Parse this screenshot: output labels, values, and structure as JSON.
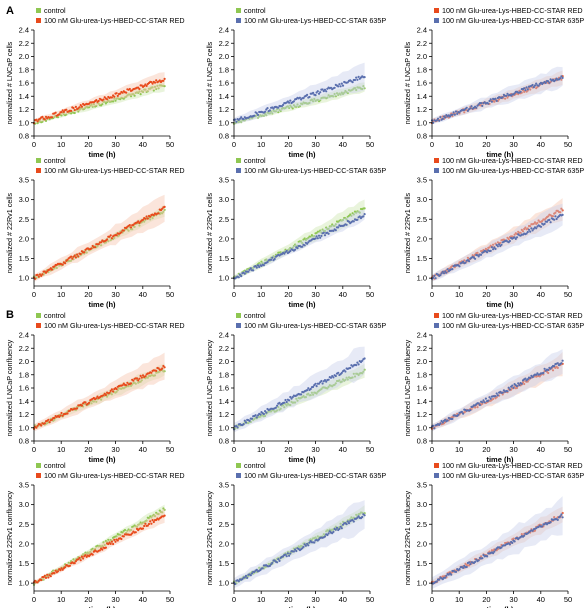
{
  "panels": [
    "A",
    "B"
  ],
  "colors": {
    "control": "#8fc752",
    "red": "#e84a1c",
    "p635": "#5a6fae",
    "control_band": "#cfe7b2",
    "red_band": "#f7c5b0",
    "p635_band": "#c9d1ec"
  },
  "chart_data": [
    {
      "type": "scatter",
      "panel": "A",
      "xlabel": "time (h)",
      "ylabel": "normalized # LNCaP cells",
      "xlim": [
        0,
        50
      ],
      "ylim": [
        0.8,
        2.4
      ],
      "xticks": [
        0,
        10,
        20,
        30,
        40,
        50
      ],
      "yticks": [
        0.8,
        1.0,
        1.2,
        1.4,
        1.6,
        1.8,
        2.0,
        2.2,
        2.4
      ],
      "series": [
        {
          "name": "control",
          "color_key": "control",
          "x": [
            0,
            48
          ],
          "y": [
            1.0,
            1.56
          ],
          "band": 0.06
        },
        {
          "name": "100 nM Glu-urea-Lys-HBED-CC-STAR RED",
          "color_key": "red",
          "x": [
            0,
            48
          ],
          "y": [
            1.02,
            1.66
          ],
          "band": 0.08
        }
      ]
    },
    {
      "type": "scatter",
      "panel": "A",
      "xlabel": "time (h)",
      "ylabel": "normalized # LNCaP cells",
      "xlim": [
        0,
        50
      ],
      "ylim": [
        0.8,
        2.4
      ],
      "xticks": [
        0,
        10,
        20,
        30,
        40,
        50
      ],
      "yticks": [
        0.8,
        1.0,
        1.2,
        1.4,
        1.6,
        1.8,
        2.0,
        2.2,
        2.4
      ],
      "series": [
        {
          "name": "control",
          "color_key": "control",
          "x": [
            0,
            48
          ],
          "y": [
            1.0,
            1.54
          ],
          "band": 0.06
        },
        {
          "name": "100 nM Glu-urea-Lys-HBED-CC-STAR 635P",
          "color_key": "p635",
          "x": [
            0,
            48
          ],
          "y": [
            1.02,
            1.7
          ],
          "band": 0.14
        }
      ]
    },
    {
      "type": "scatter",
      "panel": "A",
      "xlabel": "time (h)",
      "ylabel": "normalized # LNCaP cells",
      "xlim": [
        0,
        50
      ],
      "ylim": [
        0.8,
        2.4
      ],
      "xticks": [
        0,
        10,
        20,
        30,
        40,
        50
      ],
      "yticks": [
        0.8,
        1.0,
        1.2,
        1.4,
        1.6,
        1.8,
        2.0,
        2.2,
        2.4
      ],
      "series": [
        {
          "name": "100 nM Glu-urea-Lys-HBED-CC-STAR RED",
          "color_key": "red",
          "x": [
            0,
            48
          ],
          "y": [
            1.02,
            1.68
          ],
          "band": 0.08
        },
        {
          "name": "100 nM Glu-urea-Lys-HBED-CC-STAR 635P",
          "color_key": "p635",
          "x": [
            0,
            48
          ],
          "y": [
            1.02,
            1.7
          ],
          "band": 0.12
        }
      ]
    },
    {
      "type": "scatter",
      "panel": "A",
      "xlabel": "time (h)",
      "ylabel": "normalized # 22Rv1 cells",
      "xlim": [
        0,
        50
      ],
      "ylim": [
        0.8,
        3.5
      ],
      "xticks": [
        0,
        10,
        20,
        30,
        40,
        50
      ],
      "yticks": [
        1.0,
        1.5,
        2.0,
        2.5,
        3.0,
        3.5
      ],
      "series": [
        {
          "name": "control",
          "color_key": "control",
          "x": [
            0,
            48
          ],
          "y": [
            1.0,
            2.72
          ],
          "band": 0.1
        },
        {
          "name": "100 nM Glu-urea-Lys-HBED-CC-STAR RED",
          "color_key": "red",
          "x": [
            0,
            48
          ],
          "y": [
            1.0,
            2.78
          ],
          "band": 0.25
        }
      ]
    },
    {
      "type": "scatter",
      "panel": "A",
      "xlabel": "time (h)",
      "ylabel": "normalized # 22Rv1 cells",
      "xlim": [
        0,
        50
      ],
      "ylim": [
        0.8,
        3.5
      ],
      "xticks": [
        0,
        10,
        20,
        30,
        40,
        50
      ],
      "yticks": [
        1.0,
        1.5,
        2.0,
        2.5,
        3.0,
        3.5
      ],
      "series": [
        {
          "name": "control",
          "color_key": "control",
          "x": [
            0,
            48
          ],
          "y": [
            1.0,
            2.78
          ],
          "band": 0.18
        },
        {
          "name": "100 nM Glu-urea-Lys-HBED-CC-STAR 635P",
          "color_key": "p635",
          "x": [
            0,
            48
          ],
          "y": [
            1.0,
            2.62
          ],
          "band": 0.12
        }
      ]
    },
    {
      "type": "scatter",
      "panel": "A",
      "xlabel": "time (h)",
      "ylabel": "normalized # 22Rv1 cells",
      "xlim": [
        0,
        50
      ],
      "ylim": [
        0.8,
        3.5
      ],
      "xticks": [
        0,
        10,
        20,
        30,
        40,
        50
      ],
      "yticks": [
        1.0,
        1.5,
        2.0,
        2.5,
        3.0,
        3.5
      ],
      "series": [
        {
          "name": "100 nM Glu-urea-Lys-HBED-CC-STAR RED",
          "color_key": "red",
          "x": [
            0,
            48
          ],
          "y": [
            1.0,
            2.75
          ],
          "band": 0.2
        },
        {
          "name": "100 nM Glu-urea-Lys-HBED-CC-STAR 635P",
          "color_key": "p635",
          "x": [
            0,
            48
          ],
          "y": [
            1.0,
            2.62
          ],
          "band": 0.22
        }
      ]
    },
    {
      "type": "scatter",
      "panel": "B",
      "xlabel": "time (h)",
      "ylabel": "normalized LNCaP confluency",
      "xlim": [
        0,
        50
      ],
      "ylim": [
        0.8,
        2.4
      ],
      "xticks": [
        0,
        10,
        20,
        30,
        40,
        50
      ],
      "yticks": [
        0.8,
        1.0,
        1.2,
        1.4,
        1.6,
        1.8,
        2.0,
        2.2,
        2.4
      ],
      "series": [
        {
          "name": "control",
          "color_key": "control",
          "x": [
            0,
            48
          ],
          "y": [
            1.0,
            1.88
          ],
          "band": 0.08
        },
        {
          "name": "100 nM Glu-urea-Lys-HBED-CC-STAR RED",
          "color_key": "red",
          "x": [
            0,
            48
          ],
          "y": [
            1.0,
            1.93
          ],
          "band": 0.14
        }
      ]
    },
    {
      "type": "scatter",
      "panel": "B",
      "xlabel": "time (h)",
      "ylabel": "normalized LNCaP confluency",
      "xlim": [
        0,
        50
      ],
      "ylim": [
        0.8,
        2.4
      ],
      "xticks": [
        0,
        10,
        20,
        30,
        40,
        50
      ],
      "yticks": [
        0.8,
        1.0,
        1.2,
        1.4,
        1.6,
        1.8,
        2.0,
        2.2,
        2.4
      ],
      "series": [
        {
          "name": "control",
          "color_key": "control",
          "x": [
            0,
            48
          ],
          "y": [
            1.0,
            1.86
          ],
          "band": 0.08
        },
        {
          "name": "100 nM Glu-urea-Lys-HBED-CC-STAR 635P",
          "color_key": "p635",
          "x": [
            0,
            48
          ],
          "y": [
            1.0,
            2.02
          ],
          "band": 0.18
        }
      ]
    },
    {
      "type": "scatter",
      "panel": "B",
      "xlabel": "time (h)",
      "ylabel": "normalized LNCaP confluency",
      "xlim": [
        0,
        50
      ],
      "ylim": [
        0.8,
        2.4
      ],
      "xticks": [
        0,
        10,
        20,
        30,
        40,
        50
      ],
      "yticks": [
        0.8,
        1.0,
        1.2,
        1.4,
        1.6,
        1.8,
        2.0,
        2.2,
        2.4
      ],
      "series": [
        {
          "name": "100 nM Glu-urea-Lys-HBED-CC-STAR RED",
          "color_key": "red",
          "x": [
            0,
            48
          ],
          "y": [
            1.0,
            1.96
          ],
          "band": 0.12
        },
        {
          "name": "100 nM Glu-urea-Lys-HBED-CC-STAR 635P",
          "color_key": "p635",
          "x": [
            0,
            48
          ],
          "y": [
            1.0,
            2.0
          ],
          "band": 0.14
        }
      ]
    },
    {
      "type": "scatter",
      "panel": "B",
      "xlabel": "time (h)",
      "ylabel": "normalized 22Rv1 confluency",
      "xlim": [
        0,
        50
      ],
      "ylim": [
        0.8,
        3.5
      ],
      "xticks": [
        0,
        10,
        20,
        30,
        40,
        50
      ],
      "yticks": [
        1.0,
        1.5,
        2.0,
        2.5,
        3.0,
        3.5
      ],
      "series": [
        {
          "name": "control",
          "color_key": "control",
          "x": [
            0,
            48
          ],
          "y": [
            1.0,
            2.88
          ],
          "band": 0.1
        },
        {
          "name": "100 nM Glu-urea-Lys-HBED-CC-STAR RED",
          "color_key": "red",
          "x": [
            0,
            48
          ],
          "y": [
            1.0,
            2.72
          ],
          "band": 0.12
        }
      ]
    },
    {
      "type": "scatter",
      "panel": "B",
      "xlabel": "time (h)",
      "ylabel": "normalized 22Rv1 confluency",
      "xlim": [
        0,
        50
      ],
      "ylim": [
        0.8,
        3.5
      ],
      "xticks": [
        0,
        10,
        20,
        30,
        40,
        50
      ],
      "yticks": [
        1.0,
        1.5,
        2.0,
        2.5,
        3.0,
        3.5
      ],
      "series": [
        {
          "name": "control",
          "color_key": "control",
          "x": [
            0,
            48
          ],
          "y": [
            1.0,
            2.82
          ],
          "band": 0.12
        },
        {
          "name": "100 nM Glu-urea-Lys-HBED-CC-STAR 635P",
          "color_key": "p635",
          "x": [
            0,
            48
          ],
          "y": [
            1.0,
            2.75
          ],
          "band": 0.3
        }
      ]
    },
    {
      "type": "scatter",
      "panel": "B",
      "xlabel": "time (h)",
      "ylabel": "normalized 22Rv1 confluency",
      "xlim": [
        0,
        50
      ],
      "ylim": [
        0.8,
        3.5
      ],
      "xticks": [
        0,
        10,
        20,
        30,
        40,
        50
      ],
      "yticks": [
        1.0,
        1.5,
        2.0,
        2.5,
        3.0,
        3.5
      ],
      "series": [
        {
          "name": "100 nM Glu-urea-Lys-HBED-CC-STAR RED",
          "color_key": "red",
          "x": [
            0,
            48
          ],
          "y": [
            1.0,
            2.75
          ],
          "band": 0.18
        },
        {
          "name": "100 nM Glu-urea-Lys-HBED-CC-STAR 635P",
          "color_key": "p635",
          "x": [
            0,
            48
          ],
          "y": [
            1.0,
            2.72
          ],
          "band": 0.35
        }
      ]
    }
  ]
}
